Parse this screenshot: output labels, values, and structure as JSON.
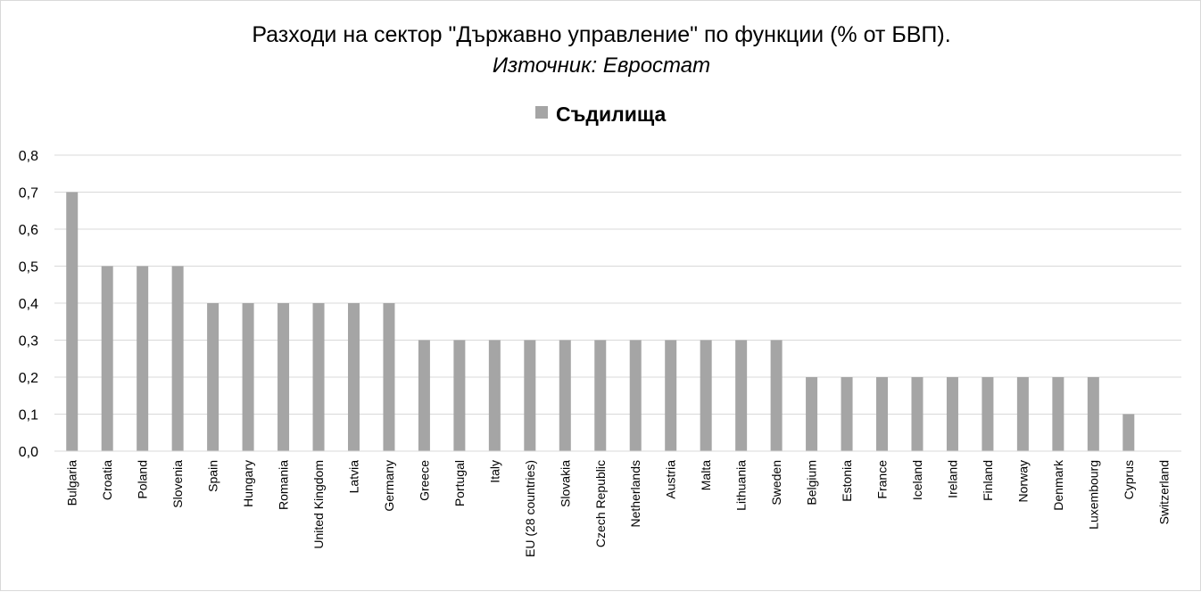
{
  "chart_data": {
    "type": "bar",
    "title": "Разходи на сектор \"Държавно управление\" по функции (% от БВП).",
    "subtitle": "Източник: Евростат",
    "xlabel": "",
    "ylabel": "",
    "ylim": [
      0,
      0.8
    ],
    "ytick_values": [
      0,
      0.1,
      0.2,
      0.3,
      0.4,
      0.5,
      0.6,
      0.7,
      0.8
    ],
    "ytick_labels": [
      "0,0",
      "0,1",
      "0,2",
      "0,3",
      "0,4",
      "0,5",
      "0,6",
      "0,7",
      "0,8"
    ],
    "grid": true,
    "legend_position": "top-center",
    "categories": [
      "Bulgaria",
      "Croatia",
      "Poland",
      "Slovenia",
      "Spain",
      "Hungary",
      "Romania",
      "United Kingdom",
      "Latvia",
      "Germany",
      "Greece",
      "Portugal",
      "Italy",
      "EU (28 countries)",
      "Slovakia",
      "Czech Republic",
      "Netherlands",
      "Austria",
      "Malta",
      "Lithuania",
      "Sweden",
      "Belgium",
      "Estonia",
      "France",
      "Iceland",
      "Ireland",
      "Finland",
      "Norway",
      "Denmark",
      "Luxembourg",
      "Cyprus",
      "Switzerland"
    ],
    "series": [
      {
        "name": "Съдилища",
        "color": "#a5a5a5",
        "values": [
          0.7,
          0.5,
          0.5,
          0.5,
          0.4,
          0.4,
          0.4,
          0.4,
          0.4,
          0.4,
          0.3,
          0.3,
          0.3,
          0.3,
          0.3,
          0.3,
          0.3,
          0.3,
          0.3,
          0.3,
          0.3,
          0.2,
          0.2,
          0.2,
          0.2,
          0.2,
          0.2,
          0.2,
          0.2,
          0.2,
          0.1,
          0.0
        ]
      }
    ],
    "colors": {
      "gridline": "#d9d9d9",
      "axis": "#d9d9d9",
      "border": "#d9d9d9"
    }
  }
}
